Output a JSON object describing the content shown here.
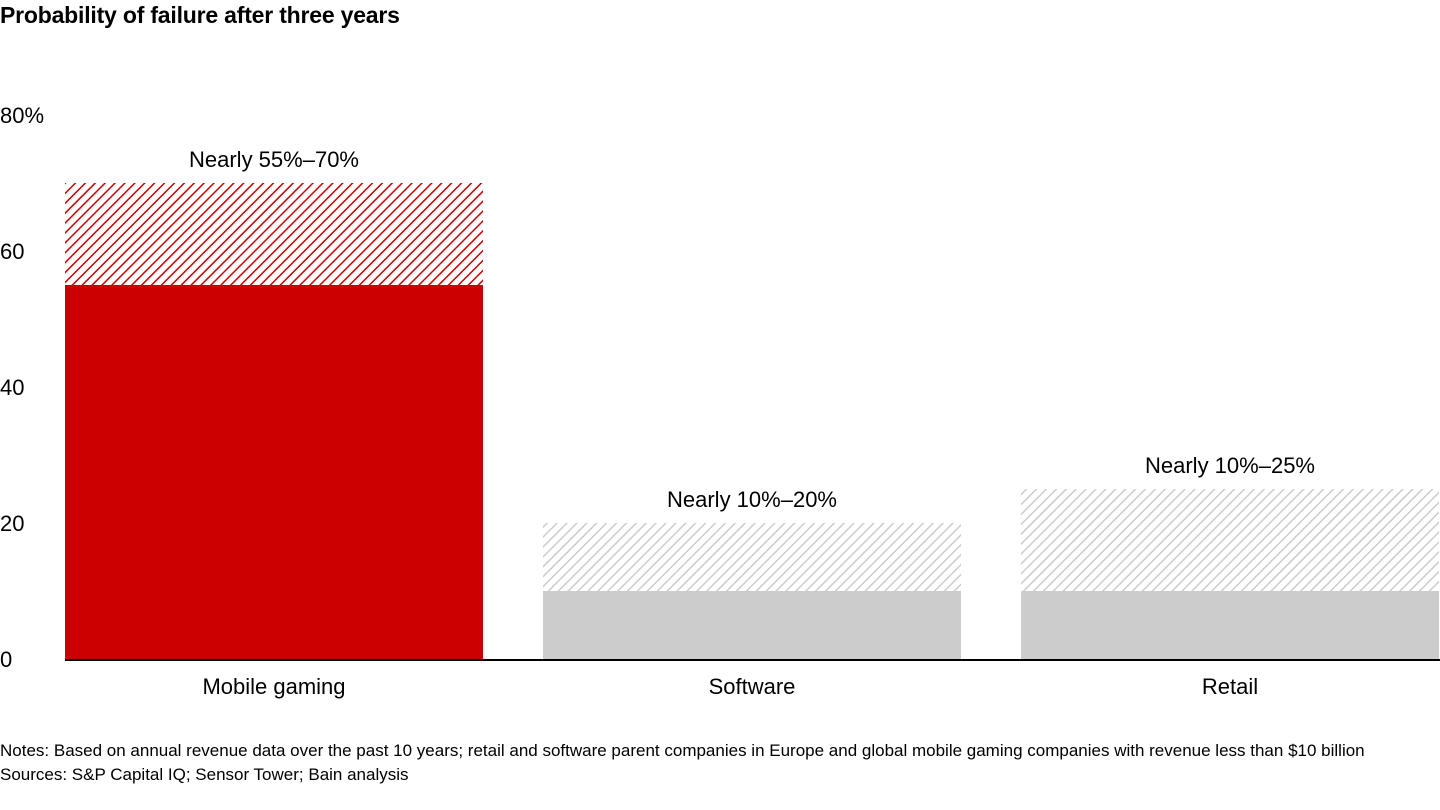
{
  "chart_data": {
    "type": "bar",
    "title": "Probability of failure after three years",
    "xlabel": "",
    "ylabel": "",
    "ylim": [
      0,
      80
    ],
    "y_ticks": [
      {
        "value": 0,
        "label": "0"
      },
      {
        "value": 20,
        "label": "20"
      },
      {
        "value": 40,
        "label": "40"
      },
      {
        "value": 60,
        "label": "60"
      },
      {
        "value": 80,
        "label": "80%"
      }
    ],
    "categories": [
      "Mobile gaming",
      "Software",
      "Retail"
    ],
    "series": [
      {
        "name": "Lower bound",
        "values": [
          55,
          10,
          10
        ]
      },
      {
        "name": "Upper bound",
        "values": [
          70,
          20,
          25
        ]
      }
    ],
    "range_labels": [
      "Nearly 55%–70%",
      "Nearly 10%–20%",
      "Nearly 10%–25%"
    ],
    "colors": {
      "Mobile gaming": "#cc0000",
      "Software": "#cccccc",
      "Retail": "#cccccc",
      "axis": "#000000"
    },
    "grid": false,
    "legend": "none"
  },
  "notes": {
    "notes_text": "Notes: Based on annual revenue data over the past 10 years; retail and software parent companies in Europe and global mobile gaming companies with revenue less than $10 billion",
    "sources_text": "Sources: S&P Capital IQ; Sensor Tower; Bain analysis"
  }
}
